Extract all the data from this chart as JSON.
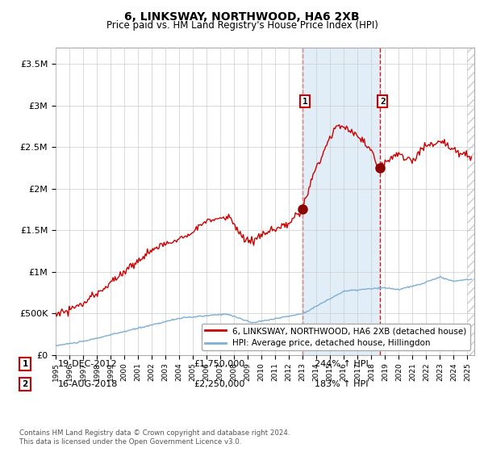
{
  "title": "6, LINKSWAY, NORTHWOOD, HA6 2XB",
  "subtitle": "Price paid vs. HM Land Registry's House Price Index (HPI)",
  "ylim": [
    0,
    3700000
  ],
  "yticks": [
    0,
    500000,
    1000000,
    1500000,
    2000000,
    2500000,
    3000000,
    3500000
  ],
  "ytick_labels": [
    "£0",
    "£500K",
    "£1M",
    "£1.5M",
    "£2M",
    "£2.5M",
    "£3M",
    "£3.5M"
  ],
  "legend_line1": "6, LINKSWAY, NORTHWOOD, HA6 2XB (detached house)",
  "legend_line2": "HPI: Average price, detached house, Hillingdon",
  "sale1_date": "19-DEC-2012",
  "sale1_price": "£1,750,000",
  "sale1_hpi": "244% ↑ HPI",
  "sale2_date": "16-AUG-2018",
  "sale2_price": "£2,250,000",
  "sale2_hpi": "183% ↑ HPI",
  "sale1_year": 2012.97,
  "sale1_value": 1750000,
  "sale2_year": 2018.62,
  "sale2_value": 2250000,
  "footer": "Contains HM Land Registry data © Crown copyright and database right 2024.\nThis data is licensed under the Open Government Licence v3.0.",
  "red_color": "#cc0000",
  "blue_color": "#7bafd4",
  "highlight_color": "#daeaf5",
  "dashed_color": "#cc0000",
  "xmin": 1995,
  "xmax": 2025.5
}
